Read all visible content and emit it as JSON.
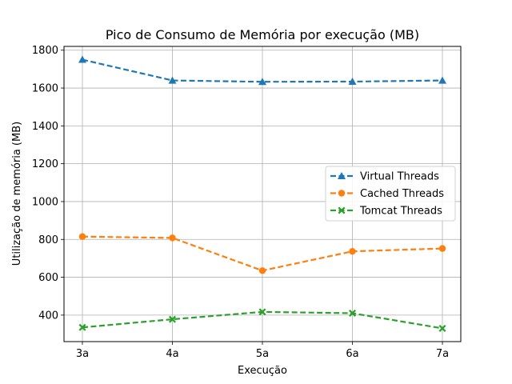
{
  "chart_data": {
    "type": "line",
    "title": "Pico de Consumo de Memória por execução (MB)",
    "xlabel": "Execução",
    "ylabel": "Utilização de memória (MB)",
    "categories": [
      "3a",
      "4a",
      "5a",
      "6a",
      "7a"
    ],
    "ylim": [
      260,
      1820
    ],
    "yticks": [
      400,
      600,
      800,
      1000,
      1200,
      1400,
      1600,
      1800
    ],
    "grid": true,
    "legend_position": "center-right",
    "series": [
      {
        "name": "Virtual Threads",
        "values": [
          1750,
          1640,
          1633,
          1634,
          1640
        ],
        "color": "#1f77b4",
        "marker": "triangle"
      },
      {
        "name": "Cached Threads",
        "values": [
          815,
          808,
          635,
          737,
          752
        ],
        "color": "#ff7f0e",
        "marker": "circle"
      },
      {
        "name": "Tomcat Threads",
        "values": [
          335,
          378,
          417,
          410,
          330
        ],
        "color": "#2ca02c",
        "marker": "x"
      }
    ]
  }
}
